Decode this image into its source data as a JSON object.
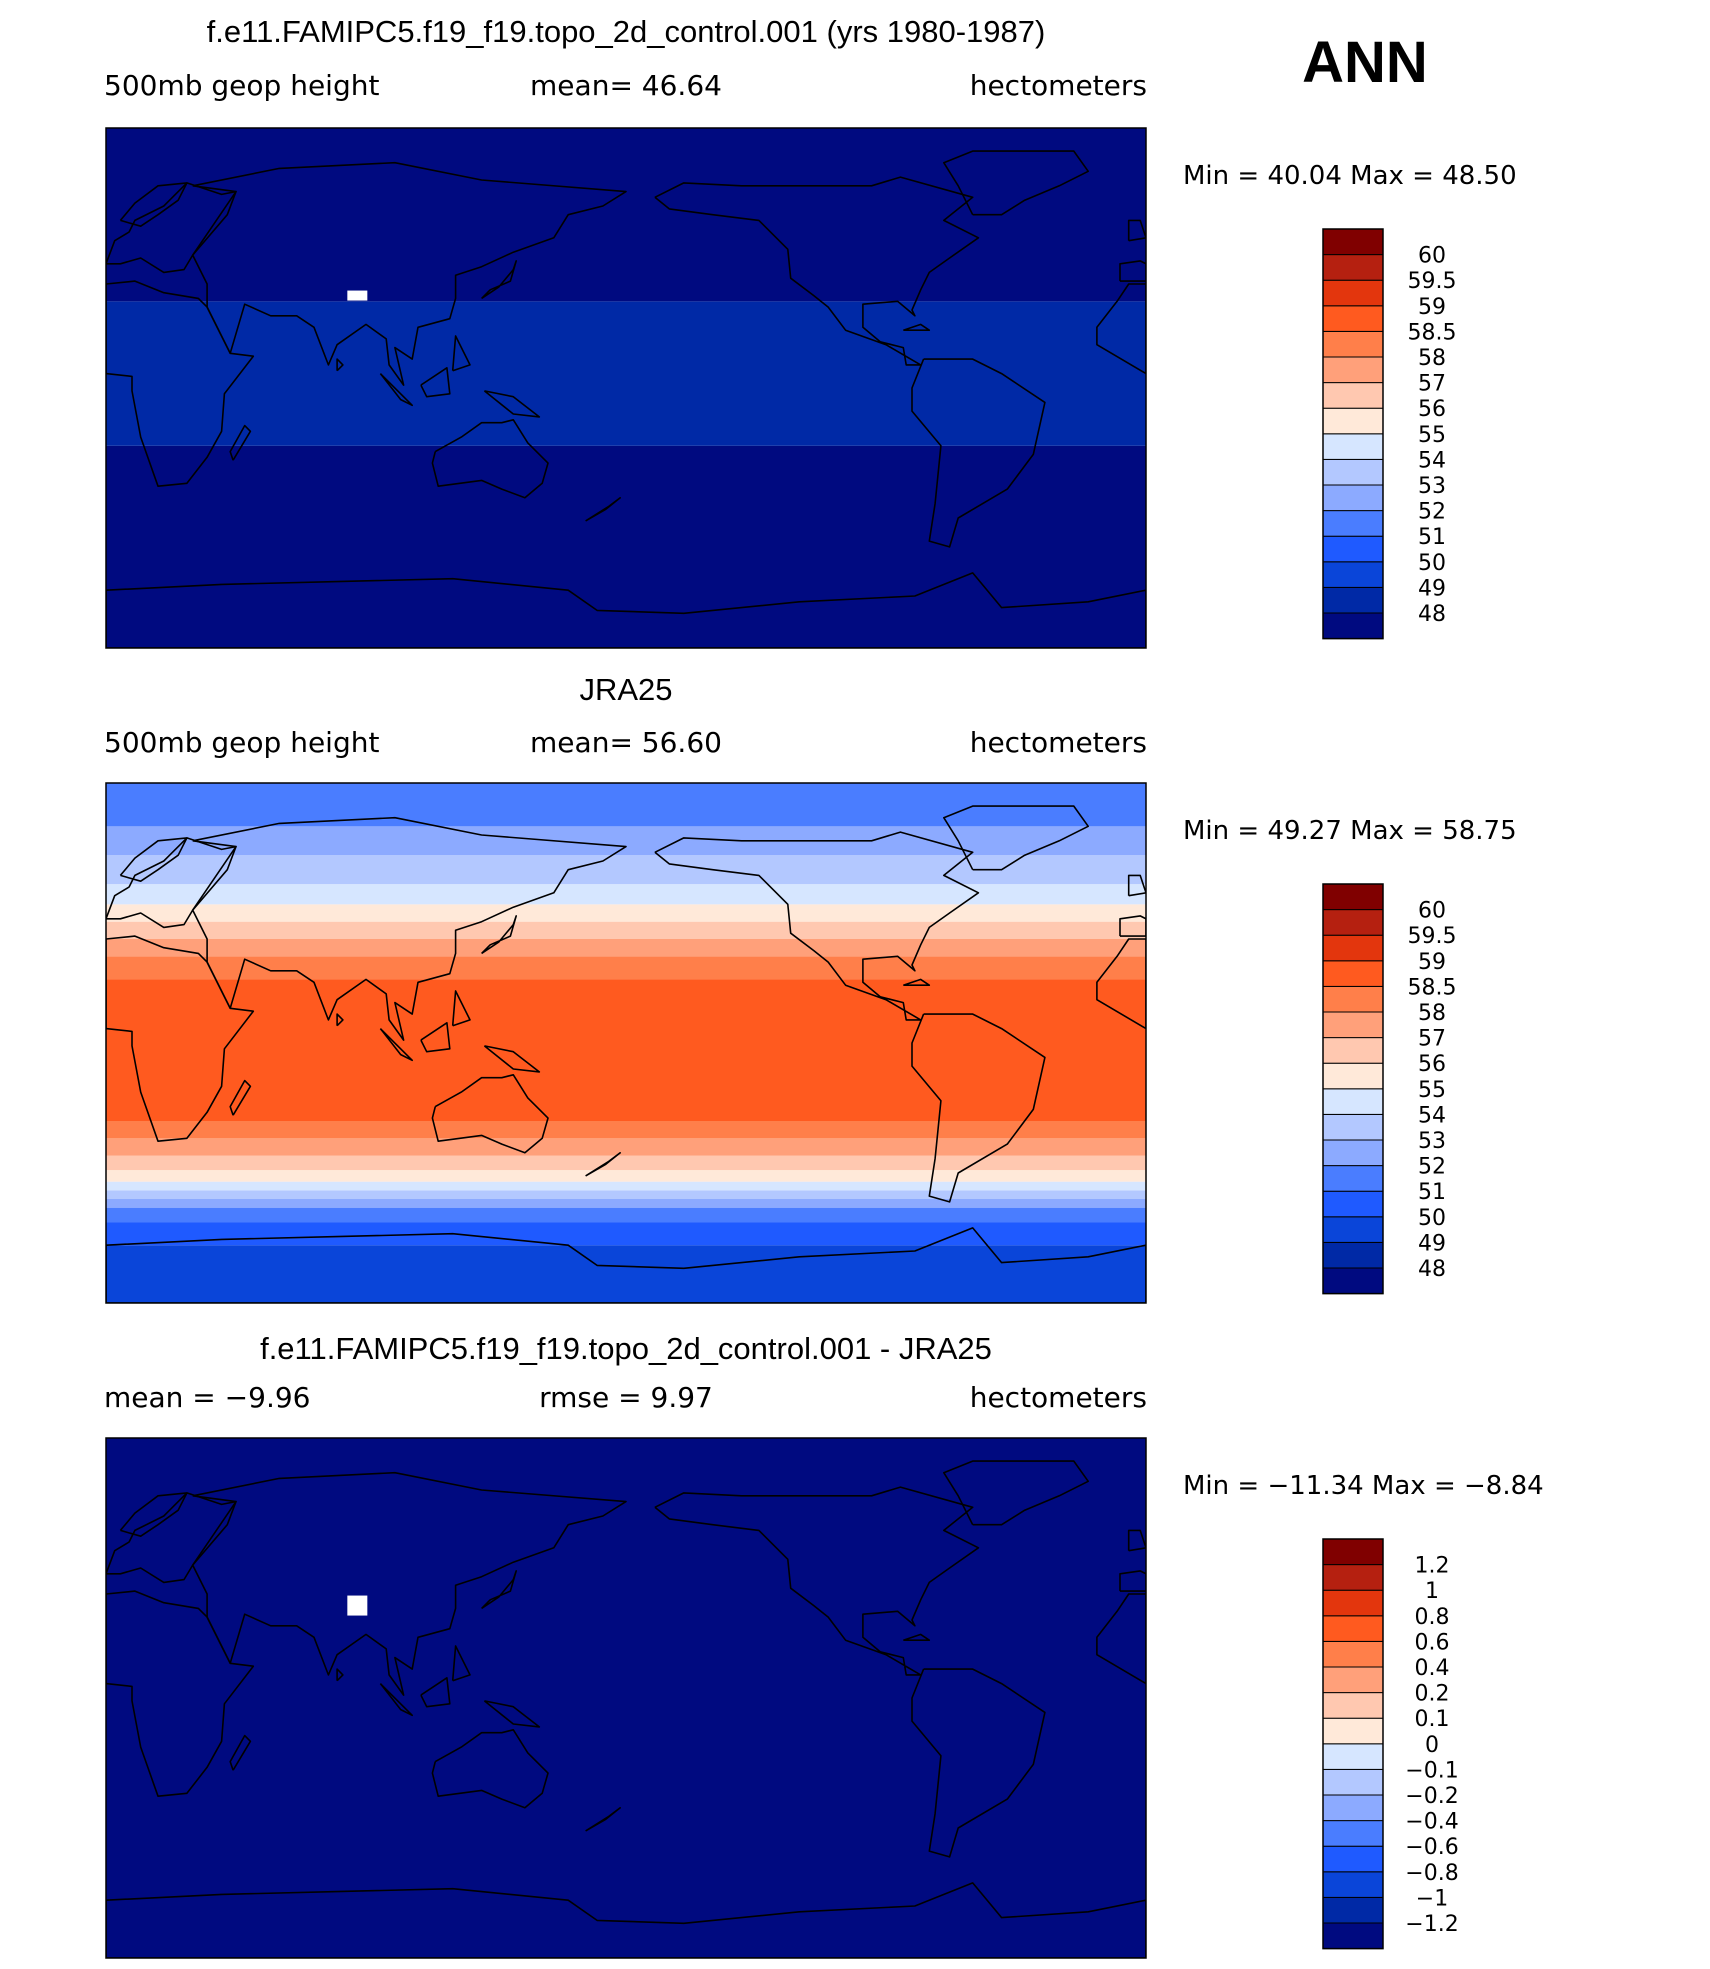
{
  "season": "ANN",
  "colors": {
    "abs_scale": [
      "#000a80",
      "#0029a6",
      "#0a45d9",
      "#1f5aff",
      "#4a7dff",
      "#8caaff",
      "#b3c8ff",
      "#d6e6ff",
      "#ffe9d9",
      "#ffc8b0",
      "#ffa07a",
      "#ff7f4a",
      "#ff5a1f",
      "#e3360d",
      "#b52010",
      "#800000"
    ],
    "diff_scale": [
      "#000a80",
      "#0029a6",
      "#0a45d9",
      "#1f5aff",
      "#4a7dff",
      "#8caaff",
      "#b3c8ff",
      "#d6e6ff",
      "#ffe9d9",
      "#ffc8b0",
      "#ffa07a",
      "#ff7f4a",
      "#ff5a1f",
      "#e3360d",
      "#b52010",
      "#800000"
    ],
    "missing": "#ffffff",
    "coast": "#000000"
  },
  "chart_data": [
    {
      "type": "heatmap",
      "title": "f.e11.FAMIPC5.f19_f19.topo_2d_control.001 (yrs 1980-1987)",
      "left_label": "500mb  geop  height",
      "center_label": "mean=   46.64",
      "right_label": "hectometers",
      "min_max": "Min  =    40.04  Max  =    48.50",
      "mean": 46.64,
      "min": 40.04,
      "max": 48.5,
      "units": "hectometers",
      "lon_range": [
        0,
        360
      ],
      "lat_range": [
        -90,
        90
      ],
      "levels": [
        "48",
        "49",
        "50",
        "51",
        "52",
        "53",
        "54",
        "55",
        "56",
        "57",
        "58",
        "58.5",
        "59",
        "59.5",
        "60"
      ],
      "zonal_bands": [
        {
          "lat": [
            -90,
            -20
          ],
          "level_index": 0
        },
        {
          "lat": [
            -20,
            30
          ],
          "level_index": 1
        },
        {
          "lat": [
            30,
            90
          ],
          "level_index": 0
        }
      ]
    },
    {
      "type": "heatmap",
      "title": "JRA25",
      "left_label": "500mb  geop  height",
      "center_label": "mean=   56.60",
      "right_label": "hectometers",
      "min_max": "Min  =    49.27  Max  =    58.75",
      "mean": 56.6,
      "min": 49.27,
      "max": 58.75,
      "units": "hectometers",
      "lon_range": [
        0,
        360
      ],
      "lat_range": [
        -90,
        90
      ],
      "levels": [
        "48",
        "49",
        "50",
        "51",
        "52",
        "53",
        "54",
        "55",
        "56",
        "57",
        "58",
        "58.5",
        "59",
        "59.5",
        "60"
      ],
      "zonal_bands": [
        {
          "lat": [
            -90,
            -70
          ],
          "level_index": 2
        },
        {
          "lat": [
            -70,
            -62
          ],
          "level_index": 3
        },
        {
          "lat": [
            -62,
            -57
          ],
          "level_index": 4
        },
        {
          "lat": [
            -57,
            -54
          ],
          "level_index": 5
        },
        {
          "lat": [
            -54,
            -51
          ],
          "level_index": 6
        },
        {
          "lat": [
            -51,
            -48
          ],
          "level_index": 7
        },
        {
          "lat": [
            -48,
            -44
          ],
          "level_index": 8
        },
        {
          "lat": [
            -44,
            -39
          ],
          "level_index": 9
        },
        {
          "lat": [
            -39,
            -33
          ],
          "level_index": 10
        },
        {
          "lat": [
            -33,
            -27
          ],
          "level_index": 11
        },
        {
          "lat": [
            -27,
            22
          ],
          "level_index": 12
        },
        {
          "lat": [
            22,
            30
          ],
          "level_index": 11
        },
        {
          "lat": [
            30,
            36
          ],
          "level_index": 10
        },
        {
          "lat": [
            36,
            42
          ],
          "level_index": 9
        },
        {
          "lat": [
            42,
            48
          ],
          "level_index": 8
        },
        {
          "lat": [
            48,
            55
          ],
          "level_index": 7
        },
        {
          "lat": [
            55,
            65
          ],
          "level_index": 6
        },
        {
          "lat": [
            65,
            75
          ],
          "level_index": 5
        },
        {
          "lat": [
            75,
            90
          ],
          "level_index": 4
        }
      ]
    },
    {
      "type": "heatmap",
      "title": "f.e11.FAMIPC5.f19_f19.topo_2d_control.001 - JRA25",
      "left_label": "mean  =    −9.96",
      "center_label": "rmse  =     9.97",
      "right_label": "hectometers",
      "min_max": "Min  = −11.34  Max  =    −8.84",
      "mean": -9.96,
      "rmse": 9.97,
      "min": -11.34,
      "max": -8.84,
      "units": "hectometers",
      "lon_range": [
        0,
        360
      ],
      "lat_range": [
        -90,
        90
      ],
      "levels": [
        "−1.2",
        "−1",
        "−0.8",
        "−0.6",
        "−0.4",
        "−0.2",
        "−0.1",
        "0",
        "0.1",
        "0.2",
        "0.4",
        "0.6",
        "0.8",
        "1",
        "1.2"
      ],
      "zonal_bands": [
        {
          "lat": [
            -90,
            90
          ],
          "level_index": 0
        }
      ]
    }
  ]
}
